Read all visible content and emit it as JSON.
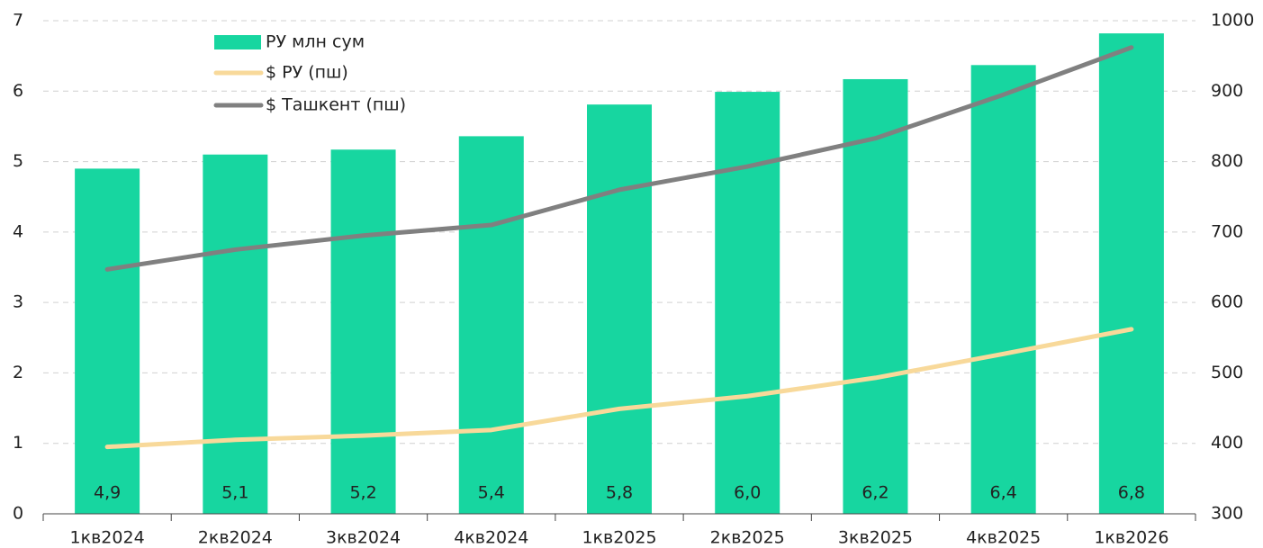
{
  "chart_data": {
    "type": "bar",
    "categories": [
      "1кв2024",
      "2кв2024",
      "3кв2024",
      "4кв2024",
      "1кв2025",
      "2кв2025",
      "3кв2025",
      "4кв2025",
      "1кв2026"
    ],
    "series": [
      {
        "name": "РУ млн сум",
        "type": "bar",
        "color": "#17d6a0",
        "values": [
          4.9,
          5.1,
          5.17,
          5.36,
          5.81,
          5.99,
          6.17,
          6.37,
          6.82
        ],
        "value_labels": [
          "4,9",
          "5,1",
          "5,2",
          "5,4",
          "5,8",
          "6,0",
          "6,2",
          "6,4",
          "6,8"
        ]
      },
      {
        "name": "$ РУ (пш)",
        "type": "line",
        "axis": "y2",
        "color": "#f8d99a",
        "values": [
          395,
          405,
          411,
          419,
          449,
          467,
          493,
          527,
          562
        ]
      },
      {
        "name": "$ Ташкент (пш)",
        "type": "line",
        "axis": "y2",
        "color": "#808080",
        "values": [
          647,
          675,
          695,
          710,
          760,
          793,
          833,
          895,
          962
        ]
      }
    ],
    "ylim": [
      0,
      7
    ],
    "yticks": [
      0,
      1,
      2,
      3,
      4,
      5,
      6,
      7
    ],
    "y2lim": [
      300,
      1000
    ],
    "y2ticks": [
      300,
      400,
      500,
      600,
      700,
      800,
      900,
      1000
    ],
    "grid": true,
    "legend": "top-left"
  }
}
